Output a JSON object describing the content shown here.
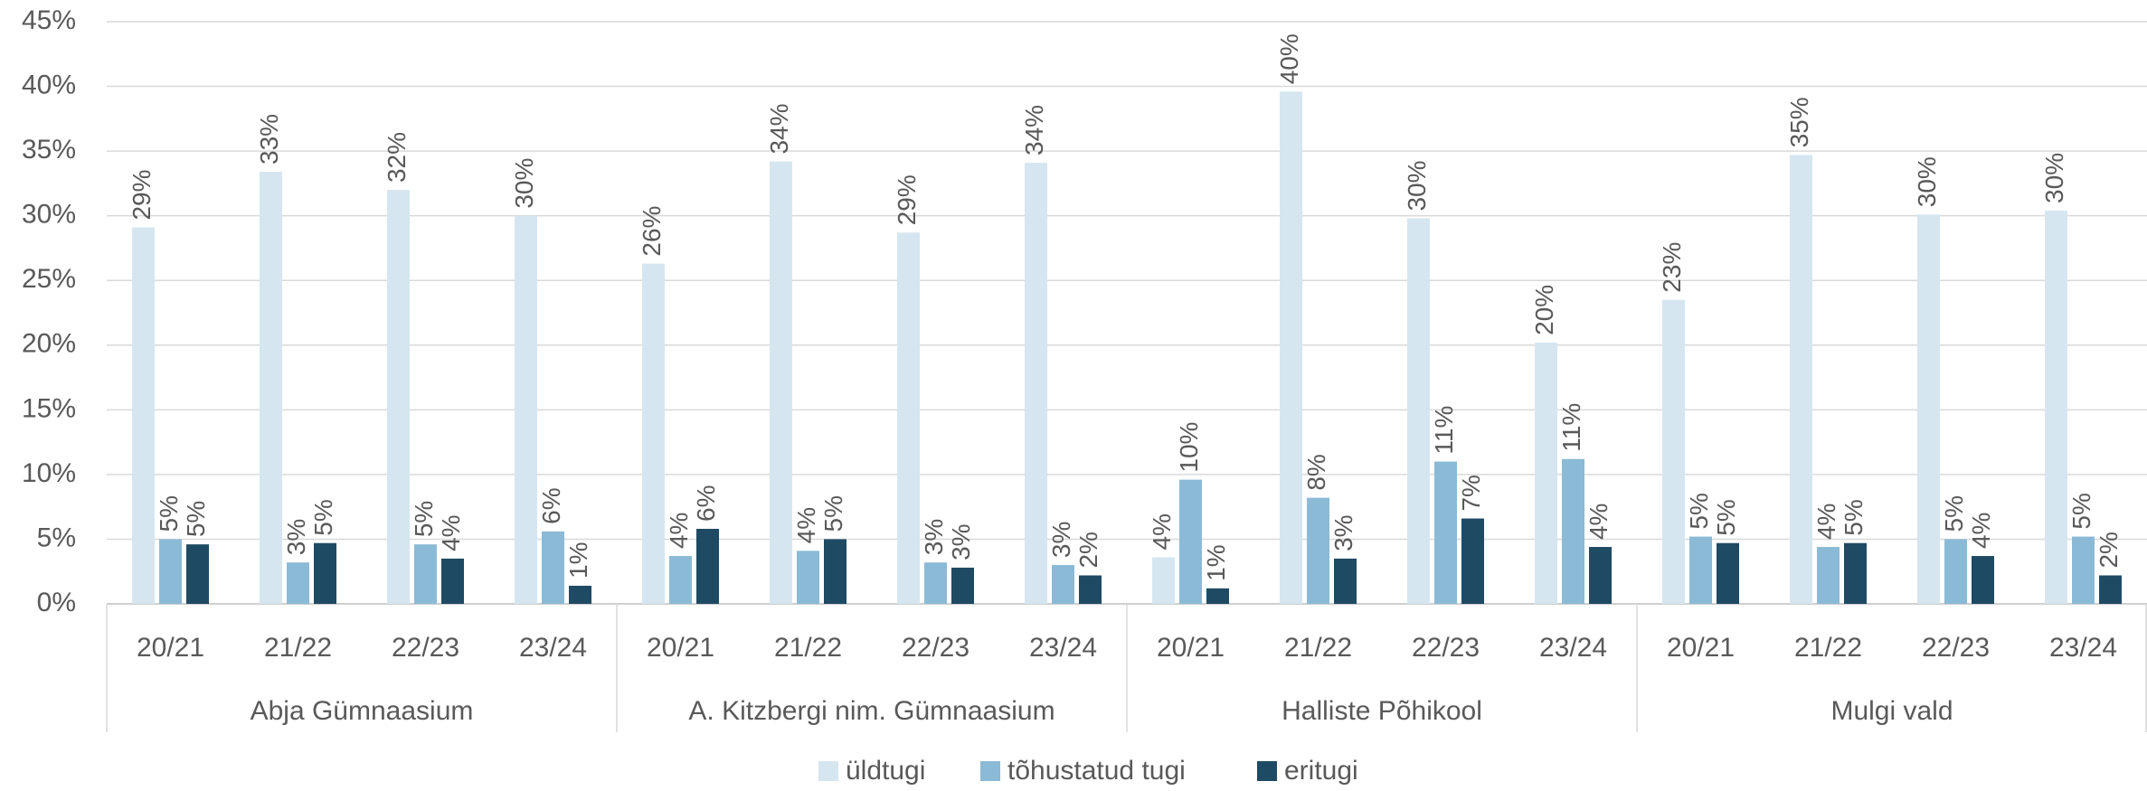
{
  "chart_data": {
    "type": "bar",
    "categories": [
      "20/21",
      "21/22",
      "22/23",
      "23/24",
      "20/21",
      "21/22",
      "22/23",
      "23/24",
      "20/21",
      "21/22",
      "22/23",
      "23/24",
      "20/21",
      "21/22",
      "22/23",
      "23/24"
    ],
    "groups": [
      "Abja Gümnaasium",
      "A. Kitzbergi nim. Gümnaasium",
      "Halliste Põhikool",
      "Mulgi vald"
    ],
    "series": [
      {
        "name": "üldtugi",
        "color": "#d6e6f0",
        "values": [
          29.1,
          33.4,
          32.0,
          30.0,
          26.3,
          34.2,
          28.7,
          34.1,
          3.6,
          39.6,
          29.8,
          20.2,
          23.5,
          34.7,
          30.1,
          30.4
        ],
        "value_labels": [
          "29%",
          "33%",
          "32%",
          "30%",
          "26%",
          "34%",
          "29%",
          "34%",
          "4%",
          "40%",
          "30%",
          "20%",
          "23%",
          "35%",
          "30%",
          "30%"
        ]
      },
      {
        "name": "tõhustatud tugi",
        "color": "#8bbad6",
        "values": [
          5.0,
          3.2,
          4.6,
          5.6,
          3.7,
          4.1,
          3.2,
          3.0,
          9.6,
          8.2,
          11.0,
          11.2,
          5.2,
          4.4,
          5.0,
          5.2
        ],
        "value_labels": [
          "5%",
          "3%",
          "5%",
          "6%",
          "4%",
          "4%",
          "3%",
          "3%",
          "10%",
          "8%",
          "11%",
          "11%",
          "5%",
          "4%",
          "5%",
          "5%"
        ]
      },
      {
        "name": "eritugi",
        "color": "#1f4a63",
        "values": [
          4.6,
          4.7,
          3.5,
          1.4,
          5.8,
          5.0,
          2.8,
          2.2,
          1.2,
          3.5,
          6.6,
          4.4,
          4.7,
          4.7,
          3.7,
          2.2
        ],
        "value_labels": [
          "5%",
          "5%",
          "4%",
          "1%",
          "6%",
          "5%",
          "3%",
          "2%",
          "1%",
          "3%",
          "7%",
          "4%",
          "5%",
          "5%",
          "4%",
          "2%"
        ]
      }
    ],
    "ylim": [
      0,
      45
    ],
    "yticks": [
      {
        "value": 0,
        "label": "0%"
      },
      {
        "value": 5,
        "label": "5%"
      },
      {
        "value": 10,
        "label": "10%"
      },
      {
        "value": 15,
        "label": "15%"
      },
      {
        "value": 20,
        "label": "20%"
      },
      {
        "value": 25,
        "label": "25%"
      },
      {
        "value": 30,
        "label": "30%"
      },
      {
        "value": 35,
        "label": "35%"
      },
      {
        "value": 40,
        "label": "40%"
      },
      {
        "value": 45,
        "label": "45%"
      }
    ],
    "grid": true,
    "legend": "bottom"
  }
}
